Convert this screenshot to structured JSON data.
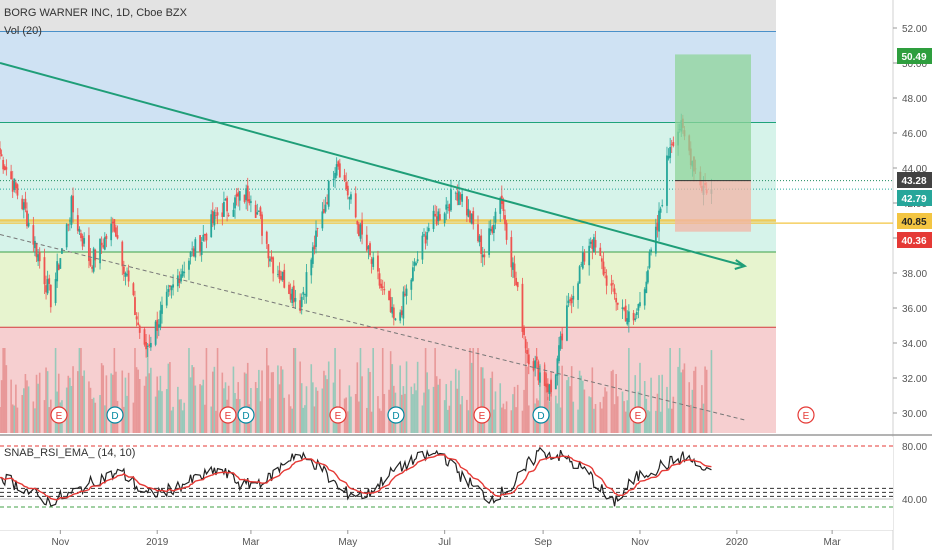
{
  "header": {
    "symbol_line": "BORG WARNER INC, 1D, Cboe BZX",
    "volume_label": "Vol (20)"
  },
  "rsi_panel": {
    "label": "SNAB_RSI_EMA_ (14, 10)",
    "y_ticks": [
      "80.00",
      "40.00"
    ]
  },
  "price_axis": {
    "ticks": [
      "52.00",
      "50.00",
      "48.00",
      "46.00",
      "44.00",
      "42.00",
      "40.00",
      "38.00",
      "36.00",
      "34.00",
      "32.00",
      "30.00"
    ]
  },
  "time_axis": {
    "labels": [
      "Nov",
      "2019",
      "Mar",
      "May",
      "Jul",
      "Sep",
      "Nov",
      "2020",
      "Mar"
    ]
  },
  "price_badges": [
    {
      "text": "50.49",
      "color": "#2e9e3e"
    },
    {
      "text": "43.28",
      "color": "#424242"
    },
    {
      "text": "42.79",
      "color": "#26a69a"
    },
    {
      "text": "40.85",
      "color": "#f3c542"
    },
    {
      "text": "40.36",
      "color": "#e53935"
    }
  ],
  "events": [
    {
      "kind": "E"
    },
    {
      "kind": "D"
    },
    {
      "kind": "E"
    },
    {
      "kind": "D"
    },
    {
      "kind": "E"
    },
    {
      "kind": "D"
    },
    {
      "kind": "E"
    },
    {
      "kind": "D"
    },
    {
      "kind": "E"
    },
    {
      "kind": "E"
    }
  ],
  "colors": {
    "up": "#26a69a",
    "down": "#ef5350",
    "trendline": "#1f9e78",
    "support": "#f3c542",
    "rsi_line": "#222222",
    "rsi_ema": "#e53935"
  },
  "chart_data": {
    "type": "candlestick",
    "title": "BORG WARNER INC, 1D, Cboe BZX",
    "ylim": [
      29,
      53
    ],
    "price_path_approx": [
      {
        "date": "2018-09-24",
        "close": 44.8
      },
      {
        "date": "2018-10-10",
        "close": 41.5
      },
      {
        "date": "2018-10-26",
        "close": 36.5
      },
      {
        "date": "2018-11-08",
        "close": 41.8
      },
      {
        "date": "2018-11-20",
        "close": 38.6
      },
      {
        "date": "2018-12-05",
        "close": 40.8
      },
      {
        "date": "2018-12-24",
        "close": 33.5
      },
      {
        "date": "2019-01-15",
        "close": 38.0
      },
      {
        "date": "2019-02-10",
        "close": 41.6
      },
      {
        "date": "2019-03-01",
        "close": 42.6
      },
      {
        "date": "2019-03-15",
        "close": 38.5
      },
      {
        "date": "2019-04-01",
        "close": 36.3
      },
      {
        "date": "2019-04-24",
        "close": 44.6
      },
      {
        "date": "2019-05-10",
        "close": 40.0
      },
      {
        "date": "2019-05-31",
        "close": 35.0
      },
      {
        "date": "2019-06-20",
        "close": 40.5
      },
      {
        "date": "2019-07-10",
        "close": 42.8
      },
      {
        "date": "2019-07-26",
        "close": 39.0
      },
      {
        "date": "2019-08-05",
        "close": 42.6
      },
      {
        "date": "2019-08-22",
        "close": 33.5
      },
      {
        "date": "2019-09-06",
        "close": 31.2
      },
      {
        "date": "2019-09-18",
        "close": 36.5
      },
      {
        "date": "2019-10-01",
        "close": 40.0
      },
      {
        "date": "2019-10-15",
        "close": 36.8
      },
      {
        "date": "2019-10-28",
        "close": 35.0
      },
      {
        "date": "2019-11-12",
        "close": 40.5
      },
      {
        "date": "2019-11-20",
        "close": 45.5
      },
      {
        "date": "2019-11-26",
        "close": 46.4
      },
      {
        "date": "2019-12-10",
        "close": 43.0
      },
      {
        "date": "2019-12-16",
        "close": 42.79
      }
    ],
    "horizontal_levels": [
      51.8,
      46.6,
      43.28,
      41.0,
      40.85,
      39.2,
      34.9
    ],
    "trendline": {
      "start": {
        "date": "2018-09-24",
        "price": 50.0
      },
      "end": {
        "date": "2020-01-06",
        "price": 38.4
      }
    },
    "dashed_trendline": {
      "start": {
        "date": "2018-09-24",
        "price": 40.2
      },
      "end": {
        "date": "2020-01-06",
        "price": 29.6
      }
    },
    "position_tool": {
      "entry": 43.28,
      "target": 50.49,
      "stop": 40.36
    },
    "rsi": {
      "name": "SNAB_RSI_EMA_ (14, 10)",
      "ylim": [
        30,
        88
      ],
      "levels": [
        80,
        48,
        45,
        42,
        40,
        34
      ],
      "rsi_path_approx": [
        58,
        48,
        38,
        44,
        55,
        60,
        43,
        47,
        55,
        62,
        50,
        55,
        74,
        66,
        45,
        43,
        60,
        70,
        75,
        55,
        40,
        50,
        76,
        72,
        60,
        36,
        56,
        65,
        72,
        58
      ]
    }
  }
}
